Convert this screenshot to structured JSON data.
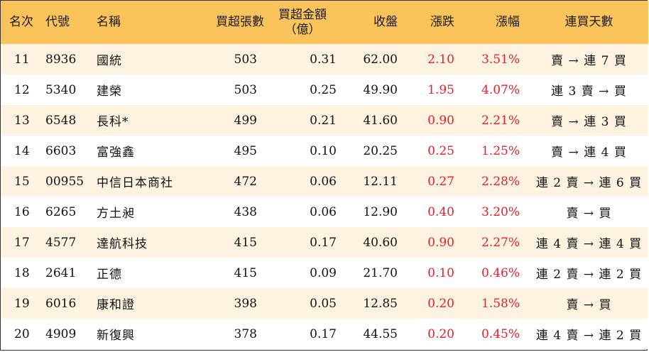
{
  "headers": {
    "rank": "名次",
    "code": "代號",
    "name": "名稱",
    "volume": "買超張數",
    "amount_line1": "買超金額",
    "amount_line2": "（億）",
    "close": "收盤",
    "change": "漲跌",
    "pct": "漲幅",
    "streak": "連買天數"
  },
  "colors": {
    "header_bg": "#fbc35c",
    "stripe_bg": "#fdf3e0",
    "up_red": "#e8202a"
  },
  "rows": [
    {
      "rank": "11",
      "code": "8936",
      "name": "國統",
      "volume": "503",
      "amount": "0.31",
      "close": "62.00",
      "change": "2.10",
      "pct": "3.51%",
      "streak": "賣 → 連 7 買"
    },
    {
      "rank": "12",
      "code": "5340",
      "name": "建榮",
      "volume": "503",
      "amount": "0.25",
      "close": "49.90",
      "change": "1.95",
      "pct": "4.07%",
      "streak": "連 3 賣 → 買"
    },
    {
      "rank": "13",
      "code": "6548",
      "name": "長科*",
      "volume": "499",
      "amount": "0.21",
      "close": "41.60",
      "change": "0.90",
      "pct": "2.21%",
      "streak": "賣 → 連 3 買"
    },
    {
      "rank": "14",
      "code": "6603",
      "name": "富強鑫",
      "volume": "495",
      "amount": "0.10",
      "close": "20.25",
      "change": "0.25",
      "pct": "1.25%",
      "streak": "賣 → 連 4 買"
    },
    {
      "rank": "15",
      "code": "00955",
      "name": "中信日本商社",
      "volume": "472",
      "amount": "0.06",
      "close": "12.11",
      "change": "0.27",
      "pct": "2.28%",
      "streak": "連 2 賣 → 連 6 買"
    },
    {
      "rank": "16",
      "code": "6265",
      "name": "方土昶",
      "volume": "438",
      "amount": "0.06",
      "close": "12.90",
      "change": "0.40",
      "pct": "3.20%",
      "streak": "賣 → 買"
    },
    {
      "rank": "17",
      "code": "4577",
      "name": "達航科技",
      "volume": "415",
      "amount": "0.17",
      "close": "40.60",
      "change": "0.90",
      "pct": "2.27%",
      "streak": "連 4 賣 → 連 4 買"
    },
    {
      "rank": "18",
      "code": "2641",
      "name": "正德",
      "volume": "415",
      "amount": "0.09",
      "close": "21.70",
      "change": "0.10",
      "pct": "0.46%",
      "streak": "連 2 賣 → 連 2 買"
    },
    {
      "rank": "19",
      "code": "6016",
      "name": "康和證",
      "volume": "398",
      "amount": "0.05",
      "close": "12.85",
      "change": "0.20",
      "pct": "1.58%",
      "streak": "賣 → 買"
    },
    {
      "rank": "20",
      "code": "4909",
      "name": "新復興",
      "volume": "378",
      "amount": "0.17",
      "close": "44.55",
      "change": "0.20",
      "pct": "0.45%",
      "streak": "連 4 賣 → 連 2 買"
    }
  ]
}
